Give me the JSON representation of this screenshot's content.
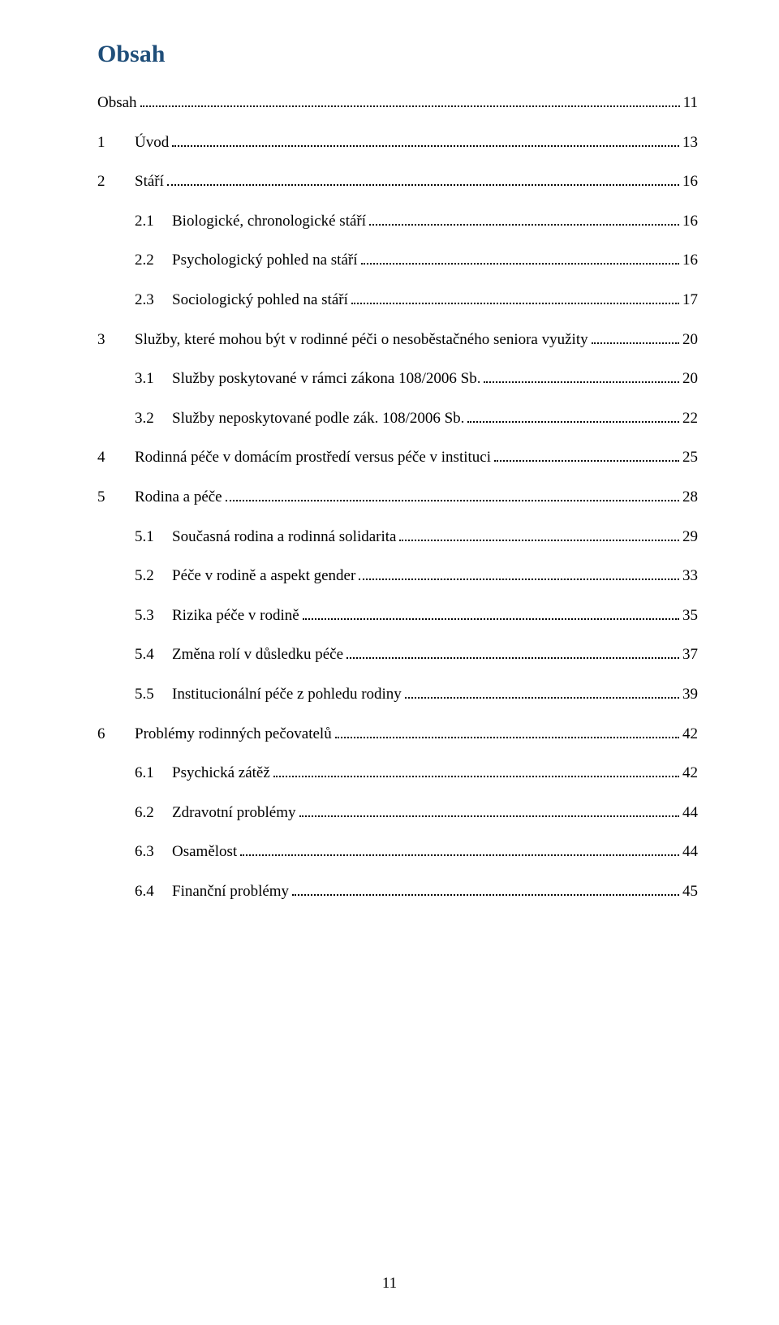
{
  "heading": "Obsah",
  "page_number": "11",
  "colors": {
    "heading": "#1f4e79",
    "text": "#000000",
    "background": "#ffffff"
  },
  "toc": [
    {
      "level": 0,
      "num": "",
      "label": "Obsah",
      "page": "11"
    },
    {
      "level": 1,
      "num": "1",
      "label": "Úvod",
      "page": "13"
    },
    {
      "level": 1,
      "num": "2",
      "label": "Stáří",
      "page": "16"
    },
    {
      "level": 2,
      "num": "2.1",
      "label": "Biologické, chronologické stáří",
      "page": "16"
    },
    {
      "level": 2,
      "num": "2.2",
      "label": "Psychologický pohled na stáří",
      "page": "16"
    },
    {
      "level": 2,
      "num": "2.3",
      "label": "Sociologický pohled na stáří",
      "page": "17"
    },
    {
      "level": 1,
      "num": "3",
      "label": "Služby, které mohou být v rodinné péči o nesoběstačného seniora využity",
      "page": "20"
    },
    {
      "level": 2,
      "num": "3.1",
      "label": "Služby poskytované v rámci zákona 108/2006 Sb.",
      "page": "20"
    },
    {
      "level": 2,
      "num": "3.2",
      "label": "Služby neposkytované podle zák. 108/2006 Sb.",
      "page": "22"
    },
    {
      "level": 1,
      "num": "4",
      "label": "Rodinná péče v domácím prostředí versus péče v instituci",
      "page": "25"
    },
    {
      "level": 1,
      "num": "5",
      "label": "Rodina a péče",
      "page": "28"
    },
    {
      "level": 2,
      "num": "5.1",
      "label": "Současná rodina a rodinná solidarita",
      "page": "29"
    },
    {
      "level": 2,
      "num": "5.2",
      "label": "Péče v rodině a aspekt gender",
      "page": "33"
    },
    {
      "level": 2,
      "num": "5.3",
      "label": "Rizika péče v rodině",
      "page": "35"
    },
    {
      "level": 2,
      "num": "5.4",
      "label": "Změna rolí v důsledku péče",
      "page": "37"
    },
    {
      "level": 2,
      "num": "5.5",
      "label": "Institucionální péče z pohledu rodiny",
      "page": "39"
    },
    {
      "level": 1,
      "num": "6",
      "label": "Problémy rodinných pečovatelů",
      "page": "42"
    },
    {
      "level": 2,
      "num": "6.1",
      "label": "Psychická zátěž",
      "page": "42"
    },
    {
      "level": 2,
      "num": "6.2",
      "label": "Zdravotní problémy",
      "page": "44"
    },
    {
      "level": 2,
      "num": "6.3",
      "label": "Osamělost",
      "page": "44"
    },
    {
      "level": 2,
      "num": "6.4",
      "label": "Finanční problémy",
      "page": "45"
    }
  ]
}
